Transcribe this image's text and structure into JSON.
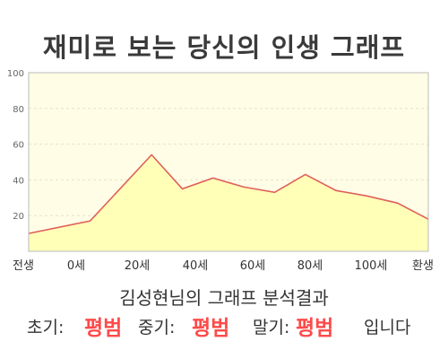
{
  "chart_data": {
    "type": "area",
    "title": "재미로 보는 당신의 인생 그래프",
    "x_labels": [
      "전생",
      "0세",
      "20세",
      "40세",
      "60세",
      "80세",
      "100세",
      "환생"
    ],
    "x": [
      -20,
      0,
      20,
      30,
      40,
      50,
      60,
      70,
      80,
      90,
      100,
      110
    ],
    "y": [
      10,
      17,
      54,
      35,
      41,
      36,
      33,
      43,
      34,
      31,
      27,
      18
    ],
    "yticks": [
      20,
      40,
      60,
      80,
      100
    ],
    "ylim": [
      0,
      100
    ],
    "xlim": [
      -20,
      110
    ],
    "grid": true,
    "line_color": "#e0605a",
    "fill_color": "#ffffb8",
    "plot_bg": "#fffde6"
  },
  "summary": "김성현님의 그래프 분석결과",
  "verdict": {
    "early_label": "초기:",
    "early_value": "평범",
    "mid_label": "중기:",
    "mid_value": "평범",
    "late_label": "말기:",
    "late_value": "평범",
    "suffix": "입니다"
  },
  "colors": {
    "highlight": "#ff4a4a",
    "text": "#333333"
  }
}
